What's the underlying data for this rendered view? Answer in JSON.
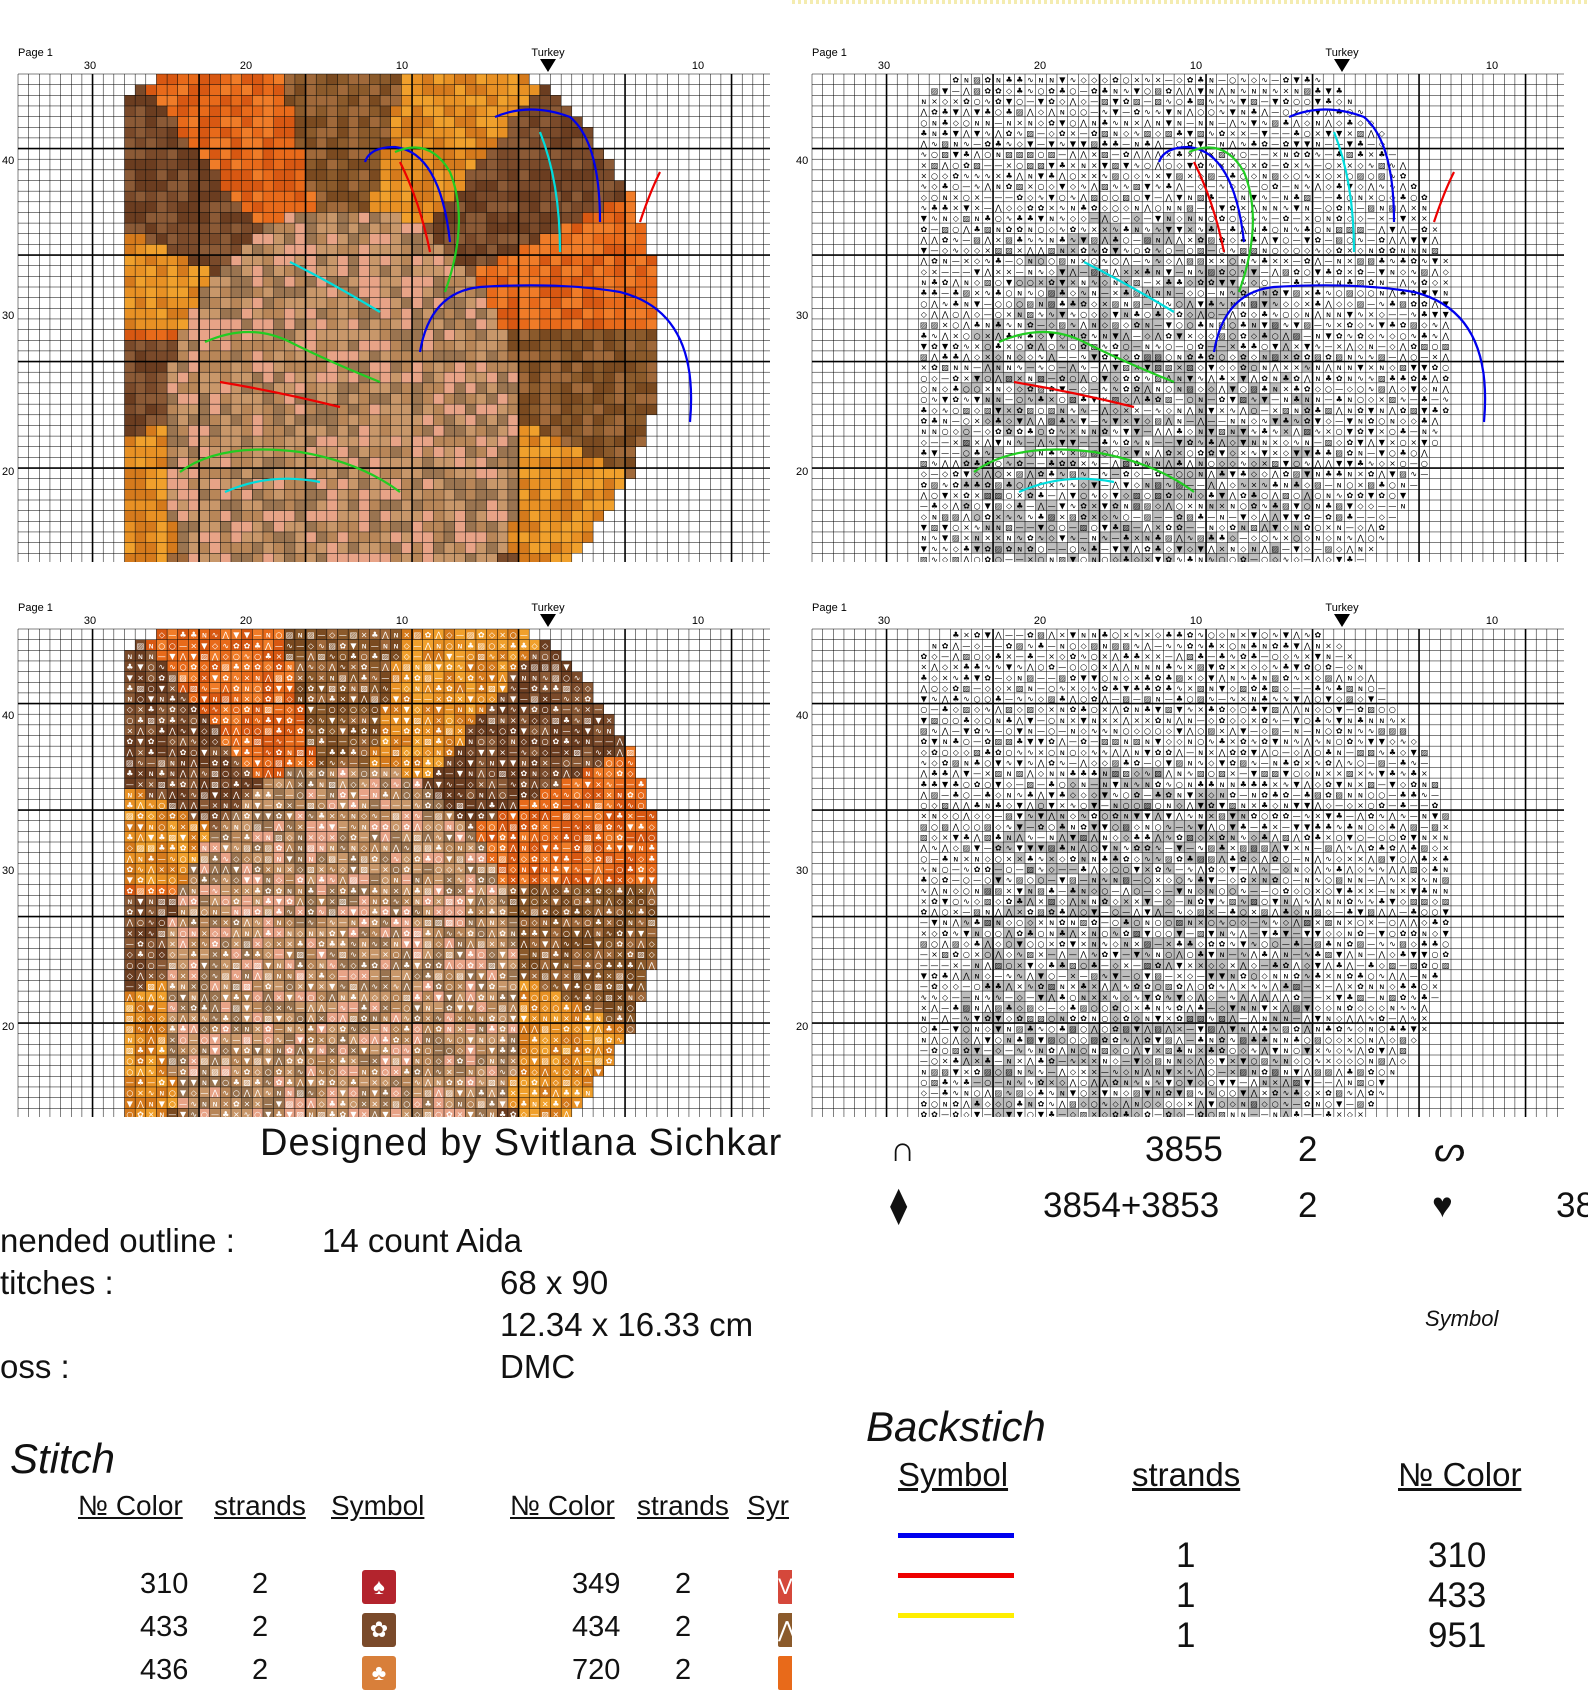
{
  "panels": [
    {
      "page_label": "Page 1",
      "title": "Turkey",
      "x_ticks": [
        "30",
        "20",
        "10",
        "10"
      ],
      "y_ticks": [
        "40",
        "30",
        "20"
      ],
      "variant": "color-backstitch"
    },
    {
      "page_label": "Page 1",
      "title": "Turkey",
      "x_ticks": [
        "30",
        "20",
        "10",
        "10"
      ],
      "y_ticks": [
        "40",
        "30",
        "20"
      ],
      "variant": "symbol-backstitch"
    },
    {
      "page_label": "Page 1",
      "title": "Turkey",
      "x_ticks": [
        "30",
        "20",
        "10",
        "10"
      ],
      "y_ticks": [
        "40",
        "30",
        "20"
      ],
      "variant": "color-symbol"
    },
    {
      "page_label": "Page 1",
      "title": "Turkey",
      "x_ticks": [
        "30",
        "20",
        "10",
        "10"
      ],
      "y_ticks": [
        "40",
        "30",
        "20"
      ],
      "variant": "symbol-only"
    }
  ],
  "designer": "Designed  by  Svitlana  Sichkar",
  "specs": {
    "outline_label": "nended outline :",
    "outline_value": "14 count Aida",
    "stitches_label": "titches :",
    "stitches_value": "68 x 90",
    "size_value": "12.34 x 16.33 cm",
    "floss_label": "oss :",
    "floss_value": "DMC"
  },
  "stitch_section": {
    "title": "Stitch",
    "headers_left": {
      "color": "№ Color",
      "strands": "strands",
      "symbol": "Symbol"
    },
    "headers_right": {
      "color": "№ Color",
      "strands": "strands",
      "symbol": "Syr"
    },
    "rows_left": [
      {
        "color": "310",
        "strands": "2",
        "symbol": "♠",
        "bg": "#b3242d"
      },
      {
        "color": "433",
        "strands": "2",
        "symbol": "✿",
        "bg": "#7a4a2a"
      },
      {
        "color": "436",
        "strands": "2",
        "symbol": "♣",
        "bg": "#d87f3a"
      }
    ],
    "rows_right": [
      {
        "color": "349",
        "strands": "2",
        "symbol": "V",
        "bg": "#d5483b"
      },
      {
        "color": "434",
        "strands": "2",
        "symbol": "⋀",
        "bg": "#8b5a2b"
      },
      {
        "color": "720",
        "strands": "2",
        "symbol": "",
        "bg": "#e86a1a"
      }
    ]
  },
  "right_table": [
    {
      "symbol": "∩",
      "color": "3855",
      "strands": "2",
      "symbol2": "ᔕ"
    },
    {
      "symbol": "⧫",
      "color": "3854+3853",
      "strands": "2",
      "symbol2": "♥",
      "color2": "38"
    }
  ],
  "symbol_label": "Symbol",
  "backstitch": {
    "title": "Backstich",
    "headers": {
      "symbol": "Symbol",
      "strands": "strands",
      "color": "№ Color"
    },
    "rows": [
      {
        "line_color": "#0000ee",
        "strands": "1",
        "color": "310"
      },
      {
        "line_color": "#ee0000",
        "strands": "1",
        "color": "433"
      },
      {
        "line_color": "#ffee00",
        "strands": "1",
        "color": "951"
      }
    ]
  }
}
